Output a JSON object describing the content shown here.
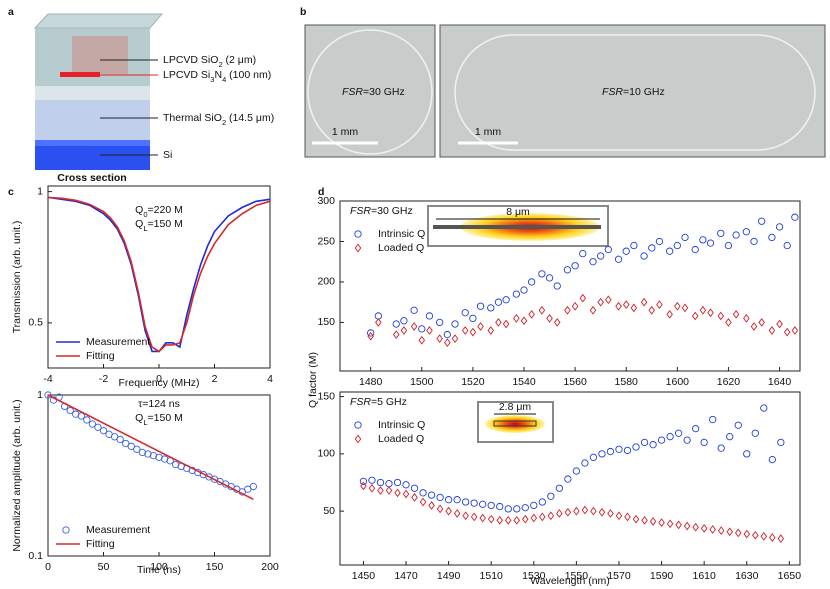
{
  "panels": [
    "a",
    "b",
    "c",
    "d"
  ],
  "panel_a": {
    "layers": [
      [
        "LPCVD SiO",
        "2",
        " (2 μm)"
      ],
      [
        "LPCVD Si",
        "3",
        "N",
        "4",
        " (100 nm)"
      ],
      [
        "Thermal SiO",
        "2",
        " (14.5 μm)"
      ],
      [
        "Si"
      ]
    ],
    "caption": "Cross section"
  },
  "panel_b": {
    "labels": [
      {
        "italic": "FSR",
        "text": "=30 GHz"
      },
      {
        "italic": "FSR",
        "text": "=10 GHz"
      }
    ],
    "scale_bars": [
      "1 mm",
      "1 mm"
    ]
  },
  "panel_d": {
    "ylabel": "Q factor (M)",
    "xlabel": "Wavelength (nm)"
  },
  "chart_data": [
    {
      "type": "line",
      "ylabel": "Transmission (arb. unit.)",
      "xlabel": "Frequency (MHz)",
      "ylog": true,
      "xlim": [
        -4,
        4
      ],
      "xticks": [
        -4,
        -2,
        0,
        2,
        4
      ],
      "ylim": [
        0.394,
        1.03
      ],
      "yticks": [
        0.5,
        1
      ],
      "legend": "lower left",
      "annotations": [
        [
          "Q",
          "0",
          "=220 M"
        ],
        [
          "Q",
          "L",
          "=150 M"
        ]
      ],
      "x": [
        -4,
        -3.5,
        -3,
        -2.5,
        -2,
        -1.75,
        -1.5,
        -1.25,
        -1,
        -0.75,
        -0.5,
        -0.25,
        0,
        0.25,
        0.5,
        0.75,
        1,
        1.25,
        1.5,
        1.75,
        2,
        2.5,
        3,
        3.5,
        4
      ],
      "series": [
        {
          "name": "Measurement",
          "color": "#1f2bd6",
          "style": "line",
          "values": [
            0.97,
            0.96,
            0.95,
            0.93,
            0.89,
            0.86,
            0.82,
            0.76,
            0.68,
            0.58,
            0.48,
            0.43,
            0.43,
            0.45,
            0.45,
            0.44,
            0.52,
            0.6,
            0.68,
            0.75,
            0.81,
            0.88,
            0.92,
            0.95,
            0.96
          ]
        },
        {
          "name": "Fitting",
          "color": "#d42a2a",
          "style": "line",
          "values": [
            0.97,
            0.965,
            0.955,
            0.935,
            0.9,
            0.87,
            0.83,
            0.77,
            0.69,
            0.59,
            0.49,
            0.44,
            0.43,
            0.445,
            0.445,
            0.45,
            0.5,
            0.58,
            0.65,
            0.71,
            0.76,
            0.84,
            0.89,
            0.93,
            0.95
          ]
        }
      ]
    },
    {
      "type": "line",
      "ylabel": "Normalized amplitude (arb. unit.)",
      "xlabel": "Time (ns)",
      "ylog": true,
      "xlim": [
        0,
        200
      ],
      "xticks": [
        0,
        50,
        100,
        150,
        200
      ],
      "ylim": [
        0.1,
        1
      ],
      "yticks": [
        0.1,
        1
      ],
      "legend": "lower left",
      "annotations": [
        [
          "τ=124 ns"
        ],
        [
          "Q",
          "L",
          "=150 M"
        ]
      ],
      "series": [
        {
          "name": "Measurement",
          "color": "#3a5fe0",
          "style": "markers",
          "marker": "circle",
          "x": [
            0,
            5,
            10,
            15,
            20,
            25,
            30,
            35,
            40,
            45,
            50,
            55,
            60,
            65,
            70,
            75,
            80,
            85,
            90,
            95,
            100,
            105,
            110,
            115,
            120,
            125,
            130,
            135,
            140,
            145,
            150,
            155,
            160,
            165,
            170,
            175,
            180,
            185
          ],
          "values": [
            1.0,
            0.93,
            0.97,
            0.85,
            0.8,
            0.76,
            0.74,
            0.7,
            0.66,
            0.63,
            0.6,
            0.57,
            0.55,
            0.53,
            0.5,
            0.48,
            0.46,
            0.44,
            0.43,
            0.42,
            0.41,
            0.4,
            0.39,
            0.37,
            0.36,
            0.35,
            0.34,
            0.33,
            0.32,
            0.31,
            0.3,
            0.29,
            0.28,
            0.27,
            0.26,
            0.25,
            0.26,
            0.27
          ]
        },
        {
          "name": "Fitting",
          "color": "#d42a2a",
          "style": "line",
          "x": [
            0,
            185
          ],
          "values": [
            1,
            0.225
          ]
        }
      ]
    },
    {
      "type": "scatter",
      "xlim": [
        1468,
        1648
      ],
      "xticks": [
        1480,
        1500,
        1520,
        1540,
        1560,
        1580,
        1600,
        1620,
        1640
      ],
      "ylim": [
        90,
        300
      ],
      "yticks": [
        150,
        200,
        250,
        300
      ],
      "legend": "upper left",
      "legend_title": {
        "italic": "FSR",
        "text": "=30 GHz"
      },
      "inset_label": "8 μm",
      "x": [
        1480,
        1483,
        1490,
        1493,
        1497,
        1500,
        1503,
        1507,
        1510,
        1513,
        1517,
        1520,
        1523,
        1527,
        1530,
        1533,
        1537,
        1540,
        1543,
        1547,
        1550,
        1553,
        1557,
        1560,
        1563,
        1567,
        1570,
        1573,
        1577,
        1580,
        1583,
        1587,
        1590,
        1593,
        1597,
        1600,
        1603,
        1607,
        1610,
        1613,
        1617,
        1620,
        1623,
        1627,
        1630,
        1633,
        1637,
        1640,
        1643,
        1646
      ],
      "series": [
        {
          "name": "Intrinsic Q",
          "color": "#1f3fd6",
          "marker": "circle",
          "values": [
            137,
            158,
            148,
            152,
            165,
            142,
            158,
            150,
            135,
            148,
            162,
            155,
            170,
            168,
            175,
            178,
            185,
            190,
            200,
            210,
            205,
            195,
            215,
            220,
            235,
            225,
            232,
            240,
            228,
            238,
            245,
            232,
            242,
            250,
            238,
            245,
            255,
            240,
            252,
            248,
            260,
            245,
            258,
            262,
            250,
            275,
            255,
            268,
            245,
            280
          ]
        },
        {
          "name": "Loaded Q",
          "color": "#d0202a",
          "marker": "diamond",
          "values": [
            133,
            150,
            135,
            140,
            145,
            128,
            140,
            130,
            125,
            130,
            140,
            138,
            145,
            140,
            150,
            148,
            155,
            152,
            160,
            165,
            155,
            150,
            165,
            170,
            180,
            165,
            175,
            178,
            170,
            172,
            168,
            175,
            165,
            172,
            160,
            170,
            168,
            158,
            165,
            162,
            158,
            150,
            160,
            155,
            145,
            150,
            140,
            148,
            138,
            140
          ]
        }
      ]
    },
    {
      "type": "scatter",
      "xlim": [
        1439,
        1655
      ],
      "xticks": [
        1450,
        1470,
        1490,
        1510,
        1530,
        1550,
        1570,
        1590,
        1610,
        1630,
        1650
      ],
      "ylim": [
        3,
        154
      ],
      "yticks": [
        50,
        100,
        150
      ],
      "legend": "upper left",
      "legend_title": {
        "italic": "FSR",
        "text": "=5 GHz"
      },
      "inset_label": "2.8 μm",
      "x": [
        1450,
        1454,
        1458,
        1462,
        1466,
        1470,
        1474,
        1478,
        1482,
        1486,
        1490,
        1494,
        1498,
        1502,
        1506,
        1510,
        1514,
        1518,
        1522,
        1526,
        1530,
        1534,
        1538,
        1542,
        1546,
        1550,
        1554,
        1558,
        1562,
        1566,
        1570,
        1574,
        1578,
        1582,
        1586,
        1590,
        1594,
        1598,
        1602,
        1606,
        1610,
        1614,
        1618,
        1622,
        1626,
        1630,
        1634,
        1638,
        1642,
        1646
      ],
      "series": [
        {
          "name": "Intrinsic Q",
          "color": "#1f3fd6",
          "marker": "circle",
          "values": [
            76,
            77,
            75,
            74,
            75,
            73,
            70,
            66,
            64,
            62,
            60,
            60,
            58,
            57,
            56,
            55,
            54,
            52,
            52,
            53,
            55,
            58,
            63,
            70,
            78,
            85,
            92,
            97,
            100,
            102,
            104,
            103,
            106,
            110,
            108,
            112,
            115,
            118,
            112,
            122,
            110,
            130,
            105,
            115,
            125,
            100,
            118,
            140,
            95,
            110
          ]
        },
        {
          "name": "Loaded Q",
          "color": "#d0202a",
          "marker": "diamond",
          "values": [
            72,
            70,
            68,
            68,
            66,
            65,
            62,
            58,
            55,
            52,
            50,
            48,
            46,
            45,
            44,
            43,
            42,
            42,
            42,
            43,
            44,
            45,
            46,
            48,
            49,
            50,
            51,
            50,
            49,
            48,
            46,
            45,
            43,
            42,
            41,
            40,
            39,
            38,
            37,
            36,
            35,
            34,
            33,
            32,
            31,
            30,
            29,
            28,
            27,
            26
          ]
        }
      ]
    }
  ]
}
